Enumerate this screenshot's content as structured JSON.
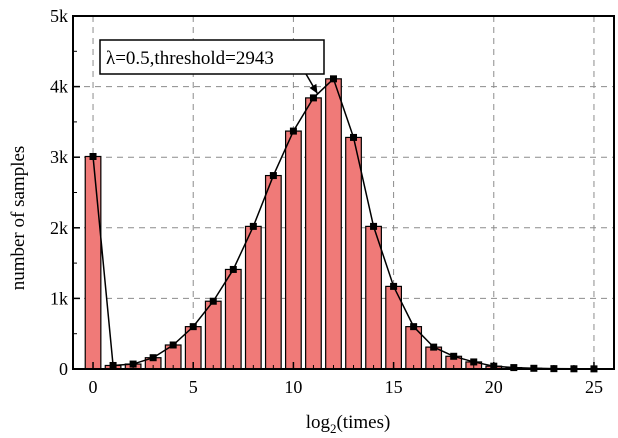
{
  "chart_data": {
    "type": "bar",
    "xlabel_base": "log",
    "xlabel_sub": "2",
    "xlabel_rest": "(times)",
    "ylabel": "number of samples",
    "xlim": [
      -1,
      26
    ],
    "ylim": [
      0,
      5000
    ],
    "xticks": [
      0,
      5,
      10,
      15,
      20,
      25
    ],
    "xtick_labels": [
      "0",
      "5",
      "10",
      "15",
      "20",
      "25"
    ],
    "yticks": [
      0,
      1000,
      2000,
      3000,
      4000,
      5000
    ],
    "ytick_labels": [
      "0",
      "1k",
      "2k",
      "3k",
      "4k",
      "5k"
    ],
    "grid": true,
    "annotation": {
      "text": "λ=0.5,threshold=2943",
      "points_to_x": 11.2,
      "points_to_y": 3900
    },
    "x": [
      0,
      1,
      2,
      3,
      4,
      5,
      6,
      7,
      8,
      9,
      10,
      11,
      12,
      13,
      14,
      15,
      16,
      17,
      18,
      19,
      20,
      21,
      22,
      23,
      24,
      25
    ],
    "values": [
      3010,
      50,
      70,
      160,
      340,
      600,
      960,
      1410,
      2020,
      2740,
      3370,
      3840,
      4110,
      3280,
      2020,
      1170,
      600,
      310,
      180,
      100,
      40,
      20,
      10,
      5,
      3,
      2
    ],
    "colors": {
      "bar_fill": "#f07a78",
      "bar_stroke": "#000000",
      "line": "#000000",
      "grid": "#8c8c8c"
    }
  }
}
